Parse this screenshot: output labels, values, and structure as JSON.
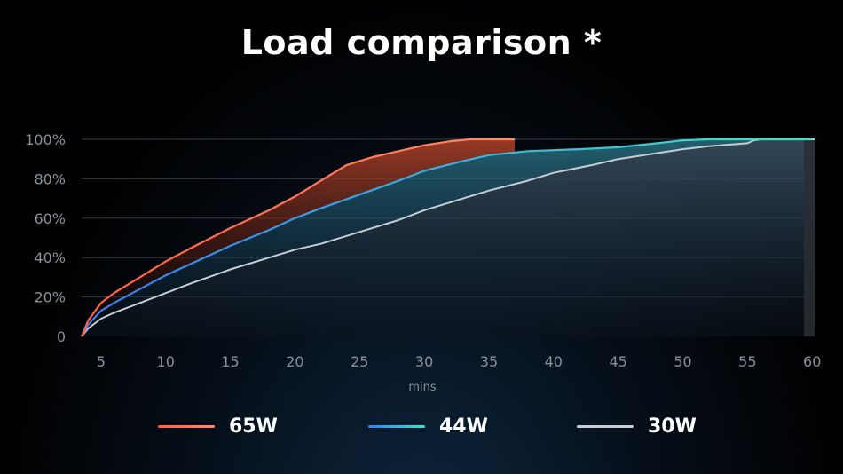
{
  "title": "Load comparison *",
  "chart_data": {
    "type": "line",
    "title": "Load comparison *",
    "xlabel": "mins",
    "ylabel": "",
    "xlim": [
      3.5,
      61
    ],
    "ylim": [
      0,
      100
    ],
    "x_ticks": [
      5,
      10,
      15,
      20,
      25,
      30,
      35,
      40,
      45,
      50,
      55,
      60
    ],
    "y_ticks": [
      0,
      20,
      40,
      60,
      80,
      100
    ],
    "y_tick_labels": [
      "0",
      "20%",
      "40%",
      "60%",
      "80%",
      "100%"
    ],
    "grid": true,
    "legend_position": "bottom",
    "series": [
      {
        "name": "65W",
        "color": "#ff6f55",
        "points": [
          [
            3.5,
            0
          ],
          [
            4,
            8
          ],
          [
            5,
            17
          ],
          [
            6,
            22
          ],
          [
            8,
            30
          ],
          [
            10,
            38
          ],
          [
            12,
            45
          ],
          [
            15,
            55
          ],
          [
            18,
            64
          ],
          [
            20,
            71
          ],
          [
            22,
            79
          ],
          [
            24,
            87
          ],
          [
            26,
            91
          ],
          [
            28,
            94
          ],
          [
            30,
            97
          ],
          [
            32,
            99
          ],
          [
            33.5,
            100
          ],
          [
            37,
            100
          ]
        ]
      },
      {
        "name": "44W",
        "color": "#3fd6c8",
        "points": [
          [
            3.5,
            0
          ],
          [
            4,
            6
          ],
          [
            5,
            13
          ],
          [
            6,
            17
          ],
          [
            8,
            24
          ],
          [
            10,
            31
          ],
          [
            12,
            37
          ],
          [
            15,
            46
          ],
          [
            18,
            54
          ],
          [
            20,
            60
          ],
          [
            22,
            65
          ],
          [
            25,
            72
          ],
          [
            28,
            79
          ],
          [
            30,
            84
          ],
          [
            33,
            89
          ],
          [
            35,
            92
          ],
          [
            38,
            94
          ],
          [
            42,
            95
          ],
          [
            45,
            96
          ],
          [
            48,
            98
          ],
          [
            50,
            99.5
          ],
          [
            52,
            100
          ],
          [
            60,
            100
          ]
        ]
      },
      {
        "name": "30W",
        "color": "#c8ccd4",
        "points": [
          [
            3.5,
            0
          ],
          [
            4,
            4
          ],
          [
            5,
            9
          ],
          [
            6,
            12
          ],
          [
            8,
            17
          ],
          [
            10,
            22
          ],
          [
            12,
            27
          ],
          [
            15,
            34
          ],
          [
            18,
            40
          ],
          [
            20,
            44
          ],
          [
            22,
            47
          ],
          [
            25,
            53
          ],
          [
            28,
            59
          ],
          [
            30,
            64
          ],
          [
            33,
            70
          ],
          [
            35,
            74
          ],
          [
            38,
            79
          ],
          [
            40,
            83
          ],
          [
            43,
            87
          ],
          [
            45,
            90
          ],
          [
            48,
            93
          ],
          [
            50,
            95
          ],
          [
            52,
            96.5
          ],
          [
            55,
            98
          ],
          [
            55.5,
            99.5
          ],
          [
            56,
            100
          ],
          [
            60,
            100
          ]
        ]
      }
    ]
  },
  "legend": [
    {
      "label": "65W",
      "color": "#ff6f55"
    },
    {
      "label": "44W",
      "color": "#3fd6c8"
    },
    {
      "label": "30W",
      "color": "#c8ccd4"
    }
  ]
}
